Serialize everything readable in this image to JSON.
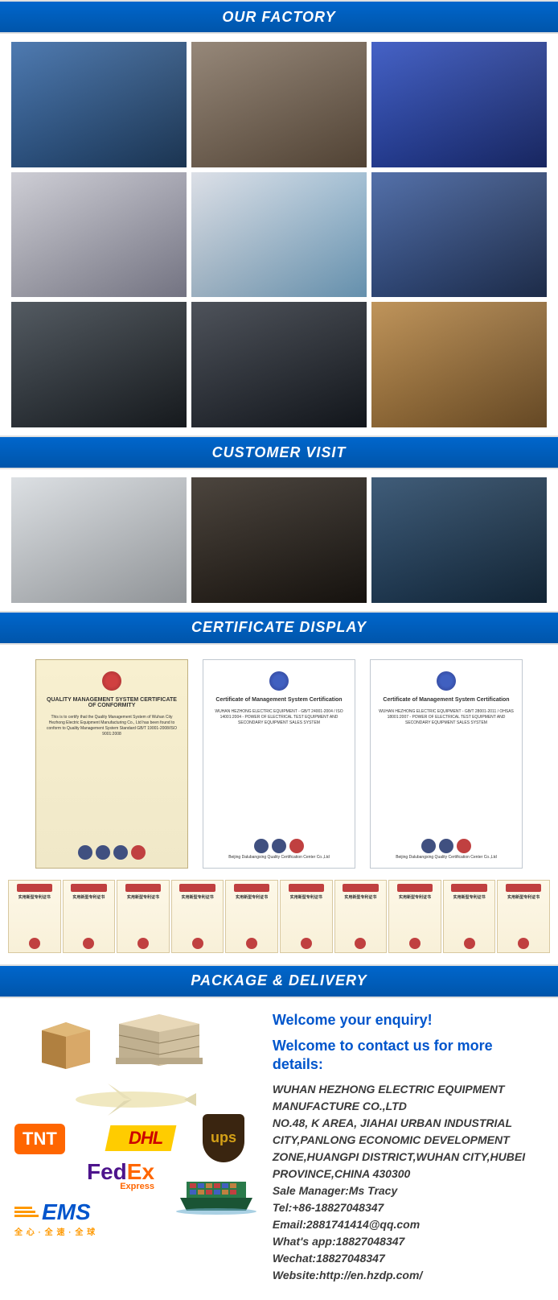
{
  "sections": {
    "factory": "OUR FACTORY",
    "customer": "CUSTOMER VISIT",
    "certificate": "CERTIFICATE DISPLAY",
    "package": "PACKAGE & DELIVERY"
  },
  "factory_grid": {
    "rows": 3,
    "cols": 3,
    "images": [
      {
        "bg": "linear-gradient(135deg,#3a6ba8 0%,#1e3a5a 100%)"
      },
      {
        "bg": "linear-gradient(135deg,#8a7a6a 0%,#5a4a3a 100%)"
      },
      {
        "bg": "linear-gradient(135deg,#3050c0 0%,#1a2a6a 100%)"
      },
      {
        "bg": "linear-gradient(135deg,#c8c8d0 0%,#808090 100%)"
      },
      {
        "bg": "linear-gradient(135deg,#d8dce4 0%,#70a0c0 100%)"
      },
      {
        "bg": "linear-gradient(135deg,#4060a0 0%,#203050 100%)"
      },
      {
        "bg": "linear-gradient(135deg,#404850 0%,#181c20 100%)"
      },
      {
        "bg": "linear-gradient(135deg,#3a3f48 0%,#14181e 100%)"
      },
      {
        "bg": "linear-gradient(135deg,#b88848 0%,#705028 100%)"
      }
    ]
  },
  "customer_grid": {
    "images": [
      {
        "bg": "linear-gradient(135deg,#d8dce0 0%,#a0a4a8 100%)"
      },
      {
        "bg": "linear-gradient(135deg,#383028 0%,#181410 100%)"
      },
      {
        "bg": "linear-gradient(135deg,#2a4a6a 0%,#14283a 100%)"
      }
    ]
  },
  "certs_top": [
    {
      "style": "tan",
      "title": "QUALITY MANAGEMENT SYSTEM CERTIFICATE OF CONFORMITY",
      "body": "This is to certify that the Quality Management System of Wuhan City Hezhong Electric Equipment Manufacturing Co., Ltd has been found to conform to Quality Management System Standard GB/T 19001-2008/ISO 9001:2008"
    },
    {
      "style": "white",
      "title": "Certificate of Management System Certification",
      "body": "WUHAN HEZHONG ELECTRIC EQUIPMENT - GB/T 24001-2004 / ISO 14001:2004 - POWER OF ELECTRICAL TEST EQUIPMENT AND SECONDARY EQUIPMENT SALES SYSTEM"
    },
    {
      "style": "white",
      "title": "Certificate of Management System Certification",
      "body": "WUHAN HEZHONG ELECTRIC EQUIPMENT - GB/T 28001-2011 / OHSAS 18001:2007 - POWER OF ELECTRICAL TEST EQUIPMENT AND SECONDARY EQUIPMENT SALES SYSTEM"
    }
  ],
  "certs_top_footer": "Beijing Dalubangxing Quality Certification Center Co.,Ltd",
  "certs_row_label": "实用新型专利证书",
  "certs_row_count": 10,
  "package": {
    "welcome1": "Welcome your enquiry!",
    "welcome2": "Welcome to contact us for more details:",
    "company": "WUHAN HEZHONG ELECTRIC EQUIPMENT MANUFACTURE CO.,LTD",
    "address": "NO.48, K AREA, JIAHAI URBAN INDUSTRIAL CITY,PANLONG ECONOMIC DEVELOPMENT ZONE,HUANGPI DISTRICT,WUHAN CITY,HUBEI PROVINCE,CHINA 430300",
    "manager_label": "Sale Manager:",
    "manager_value": "Ms Tracy",
    "tel_label": "Tel:",
    "tel_value": "+86-18827048347",
    "email_label": "Email:",
    "email_value": "2881741414@qq.com",
    "whatsapp_label": "What's app:",
    "whatsapp_value": "18827048347",
    "wechat_label": "Wechat:",
    "wechat_value": "18827048347",
    "website_label": "Website:",
    "website_value": "http://en.hzdp.com/"
  },
  "shipping_logos": {
    "tnt": "TNT",
    "dhl": "DHL",
    "ups": "ups",
    "fedex": "FedEx",
    "fedex_sub": "Express",
    "ems": "EMS",
    "ems_sub": "全 心 · 全 速 · 全 球"
  },
  "colors": {
    "header_bg_top": "#0066cc",
    "header_bg_bottom": "#0055aa",
    "header_text": "#ffffff",
    "welcome_text": "#0055cc",
    "contact_text": "#3a3a3a",
    "tnt_bg": "#ff6600",
    "dhl_bg": "#ffcc00",
    "dhl_text": "#cc0000",
    "ups_bg": "#3a2510",
    "ups_text": "#d4a017",
    "fedex_fed": "#4d148c",
    "fedex_ex": "#ff6600",
    "ems_text": "#0055cc",
    "ems_stripe": "#ff9900"
  }
}
